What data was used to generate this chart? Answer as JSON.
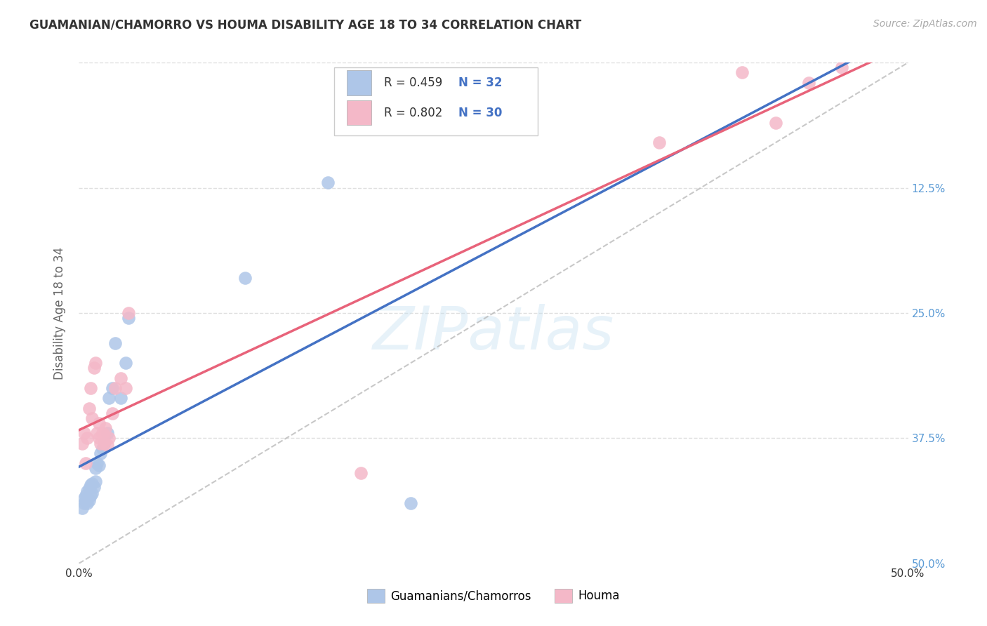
{
  "title": "GUAMANIAN/CHAMORRO VS HOUMA DISABILITY AGE 18 TO 34 CORRELATION CHART",
  "source": "Source: ZipAtlas.com",
  "ylabel": "Disability Age 18 to 34",
  "xlim": [
    0,
    0.5
  ],
  "ylim": [
    0,
    0.5
  ],
  "xticks": [
    0.0,
    0.1,
    0.2,
    0.3,
    0.4,
    0.5
  ],
  "yticks": [
    0.0,
    0.125,
    0.25,
    0.375,
    0.5
  ],
  "legend_label1": "Guamanians/Chamorros",
  "legend_label2": "Houma",
  "R1": 0.459,
  "N1": 32,
  "R2": 0.802,
  "N2": 30,
  "color1": "#aec6e8",
  "color2": "#f4b8c8",
  "line_color1": "#4472c4",
  "line_color2": "#e8637a",
  "scatter1_x": [
    0.002,
    0.003,
    0.003,
    0.004,
    0.004,
    0.005,
    0.005,
    0.005,
    0.006,
    0.006,
    0.007,
    0.007,
    0.008,
    0.008,
    0.009,
    0.01,
    0.01,
    0.011,
    0.012,
    0.013,
    0.014,
    0.015,
    0.017,
    0.018,
    0.02,
    0.022,
    0.025,
    0.028,
    0.03,
    0.1,
    0.15,
    0.2
  ],
  "scatter1_y": [
    0.055,
    0.06,
    0.065,
    0.062,
    0.068,
    0.06,
    0.065,
    0.072,
    0.063,
    0.075,
    0.068,
    0.078,
    0.07,
    0.08,
    0.076,
    0.082,
    0.095,
    0.1,
    0.098,
    0.11,
    0.115,
    0.12,
    0.13,
    0.165,
    0.175,
    0.22,
    0.165,
    0.2,
    0.245,
    0.285,
    0.38,
    0.06
  ],
  "scatter2_x": [
    0.002,
    0.003,
    0.004,
    0.005,
    0.006,
    0.007,
    0.008,
    0.009,
    0.01,
    0.011,
    0.012,
    0.012,
    0.013,
    0.014,
    0.015,
    0.015,
    0.016,
    0.017,
    0.018,
    0.02,
    0.022,
    0.025,
    0.028,
    0.03,
    0.17,
    0.35,
    0.4,
    0.42,
    0.44,
    0.46
  ],
  "scatter2_y": [
    0.12,
    0.13,
    0.1,
    0.125,
    0.155,
    0.175,
    0.145,
    0.195,
    0.2,
    0.13,
    0.14,
    0.125,
    0.12,
    0.13,
    0.128,
    0.12,
    0.135,
    0.118,
    0.125,
    0.15,
    0.175,
    0.185,
    0.175,
    0.25,
    0.09,
    0.42,
    0.49,
    0.44,
    0.48,
    0.495
  ],
  "watermark": "ZIPatlas",
  "background_color": "#ffffff",
  "grid_color": "#d8d8d8",
  "title_color": "#333333",
  "axis_label_color": "#666666",
  "right_tick_color": "#5b9bd5",
  "text_color": "#333333",
  "legend_R_color": "#333333",
  "legend_N_color": "#4472c4"
}
